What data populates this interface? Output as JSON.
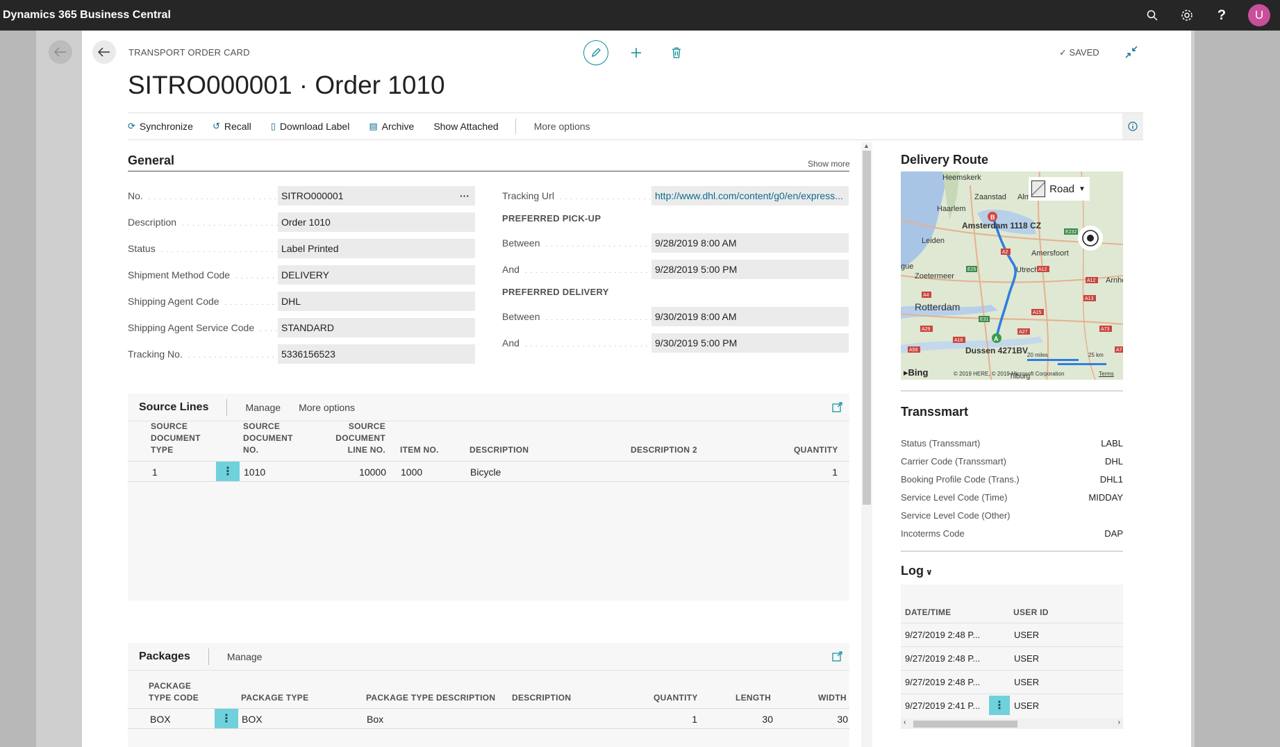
{
  "app": {
    "title": "Dynamics 365 Business Central",
    "avatar": "U"
  },
  "header": {
    "breadcrumb": "TRANSPORT ORDER CARD",
    "title": "SITRO000001 · Order 1010",
    "saved": "SAVED"
  },
  "actions": {
    "synchronize": "Synchronize",
    "recall": "Recall",
    "download_label": "Download Label",
    "archive": "Archive",
    "show_attached": "Show Attached",
    "more_options": "More options"
  },
  "general": {
    "title": "General",
    "show_more": "Show more",
    "left": [
      {
        "label": "No.",
        "value": "SITRO000001"
      },
      {
        "label": "Description",
        "value": "Order 1010"
      },
      {
        "label": "Status",
        "value": "Label Printed"
      },
      {
        "label": "Shipment Method Code",
        "value": "DELIVERY"
      },
      {
        "label": "Shipping Agent Code",
        "value": "DHL"
      },
      {
        "label": "Shipping Agent Service Code",
        "value": "STANDARD"
      },
      {
        "label": "Tracking No.",
        "value": "5336156523"
      }
    ],
    "tracking_url": {
      "label": "Tracking Url",
      "value": "http://www.dhl.com/content/g0/en/express..."
    },
    "pickup": {
      "title": "PREFERRED PICK-UP",
      "between_label": "Between",
      "between": "9/28/2019 8:00 AM",
      "and_label": "And",
      "and": "9/28/2019 5:00 PM"
    },
    "delivery": {
      "title": "PREFERRED DELIVERY",
      "between_label": "Between",
      "between": "9/30/2019 8:00 AM",
      "and_label": "And",
      "and": "9/30/2019 5:00 PM"
    }
  },
  "source_lines": {
    "title": "Source Lines",
    "manage": "Manage",
    "more_options": "More options",
    "headers": {
      "doc_type": [
        "SOURCE",
        "DOCUMENT",
        "TYPE"
      ],
      "doc_no": [
        "SOURCE",
        "DOCUMENT",
        "NO."
      ],
      "line_no": [
        "SOURCE",
        "DOCUMENT",
        "LINE NO."
      ],
      "item_no": "ITEM NO.",
      "description": "DESCRIPTION",
      "description2": "DESCRIPTION 2",
      "quantity": "QUANTITY"
    },
    "row": {
      "doc_type": "1",
      "doc_no": "1010",
      "line_no": "10000",
      "item_no": "1000",
      "description": "Bicycle",
      "quantity": "1"
    }
  },
  "packages": {
    "title": "Packages",
    "manage": "Manage",
    "headers": {
      "type_code": [
        "PACKAGE",
        "TYPE CODE"
      ],
      "type": "PACKAGE TYPE",
      "type_desc": "PACKAGE TYPE DESCRIPTION",
      "description": "DESCRIPTION",
      "quantity": "QUANTITY",
      "length": "LENGTH",
      "width": "WIDTH"
    },
    "row": {
      "type_code": "BOX",
      "type": "BOX",
      "type_desc": "Box",
      "quantity": "1",
      "length": "30",
      "width": "30"
    }
  },
  "delivery_route": {
    "title": "Delivery Route",
    "map_style": "Road",
    "labels": [
      "Heemskerk",
      "Zaanstad",
      "Alm",
      "Haarlem",
      "Amsterdam 1118 CZ",
      "Leiden",
      "Amersfoort",
      "Utrecht",
      "Zoetermeer",
      "Arnhe",
      "Rotterdam",
      "Dussen 4271BV",
      "Tilburg",
      "gue"
    ],
    "road_labels": [
      "A2",
      "E232",
      "E25",
      "A4",
      "A12",
      "A12",
      "A15",
      "A13",
      "A29",
      "A16",
      "A27",
      "A73",
      "A59",
      "E31",
      "A7"
    ],
    "scale_miles": "20 miles",
    "scale_km": "25 km",
    "bing": "Bing",
    "copyright": "© 2019 HERE, © 2019 Microsoft Corporation",
    "terms": "Terms"
  },
  "transsmart": {
    "title": "Transsmart",
    "rows": [
      {
        "label": "Status (Transsmart)",
        "value": "LABL"
      },
      {
        "label": "Carrier Code (Transsmart)",
        "value": "DHL"
      },
      {
        "label": "Booking Profile Code (Trans.)",
        "value": "DHL1"
      },
      {
        "label": "Service Level Code (Time)",
        "value": "MIDDAY"
      },
      {
        "label": "Service Level Code (Other)",
        "value": ""
      },
      {
        "label": "Incoterms Code",
        "value": "DAP"
      }
    ]
  },
  "log": {
    "title": "Log",
    "headers": {
      "datetime": "DATE/TIME",
      "user": "USER ID"
    },
    "rows": [
      {
        "datetime": "9/27/2019 2:48 P...",
        "user": "USER"
      },
      {
        "datetime": "9/27/2019 2:48 P...",
        "user": "USER"
      },
      {
        "datetime": "9/27/2019 2:48 P...",
        "user": "USER"
      },
      {
        "datetime": "9/27/2019 2:41 P...",
        "user": "USER"
      }
    ]
  },
  "colors": {
    "accent": "#0b8c96",
    "link": "#0b6a8f",
    "teal_highlight": "#6fd1dc",
    "appbar": "#262626"
  }
}
